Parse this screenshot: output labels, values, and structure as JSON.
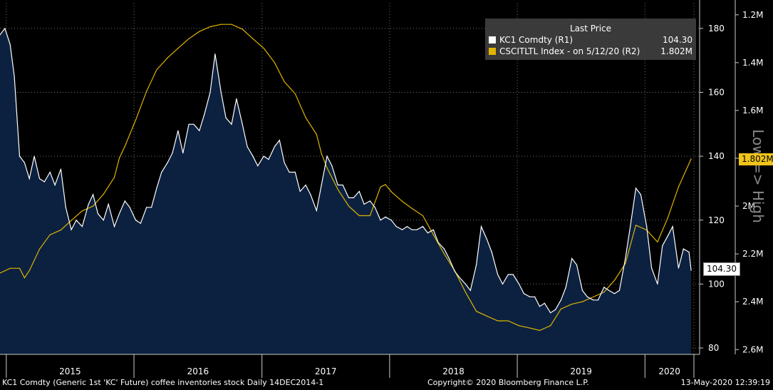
{
  "legend": {
    "header": "Last Price",
    "series1_name": "KC1 Comdty  (R1)",
    "series1_value": "104.30",
    "series2_name": "CSCITLTL Index -  on 5/12/20  (R2)",
    "series2_value": "1.802M"
  },
  "footer": {
    "left": "KC1 Comdty (Generic 1st 'KC' Future) coffee inventories stock  Daily 14DEC2014-1",
    "center": "Copyright© 2020 Bloomberg Finance L.P.",
    "right": "13-May-2020 12:39:19"
  },
  "right_axis2_title": "Low => High",
  "last_tags": {
    "price": "104.30",
    "inventory": "1.802M"
  },
  "colors": {
    "background": "#000000",
    "area_fill": "#0c2140",
    "price_line": "#ffffff",
    "inventory_line": "#e0b400",
    "grid": "#6e6e6e",
    "legend_bg": "#3a3a3a"
  },
  "chart_data": {
    "type": "line",
    "x_ticks": [
      "2015",
      "2016",
      "2017",
      "2018",
      "2019",
      "2020"
    ],
    "y1_axis": {
      "name": "R1",
      "ticks": [
        80,
        100,
        120,
        140,
        160,
        180
      ],
      "ylim": [
        78,
        188
      ]
    },
    "y2_axis": {
      "name": "R2",
      "ticks": [
        "1.2M",
        "1.4M",
        "1.6M",
        "1.8M",
        "2M",
        "2.2M",
        "2.4M",
        "2.6M"
      ],
      "ylim": [
        1.15,
        2.62
      ],
      "inverted": true
    },
    "grid": true,
    "legend_position": "top-right",
    "series": [
      {
        "name": "KC1 Comdty",
        "axis": "R1",
        "style": "area",
        "points": [
          [
            "2014-12-14",
            178
          ],
          [
            "2014-12-28",
            180
          ],
          [
            "2015-01-12",
            175
          ],
          [
            "2015-01-24",
            165
          ],
          [
            "2015-02-08",
            140
          ],
          [
            "2015-02-22",
            138
          ],
          [
            "2015-03-08",
            133
          ],
          [
            "2015-03-22",
            140
          ],
          [
            "2015-04-06",
            133
          ],
          [
            "2015-04-20",
            132
          ],
          [
            "2015-05-06",
            135
          ],
          [
            "2015-05-20",
            131
          ],
          [
            "2015-06-06",
            136
          ],
          [
            "2015-06-20",
            124
          ],
          [
            "2015-07-06",
            117
          ],
          [
            "2015-07-20",
            120
          ],
          [
            "2015-08-06",
            118
          ],
          [
            "2015-08-24",
            125
          ],
          [
            "2015-09-06",
            128
          ],
          [
            "2015-09-20",
            122
          ],
          [
            "2015-10-06",
            120
          ],
          [
            "2015-10-20",
            125
          ],
          [
            "2015-11-06",
            118
          ],
          [
            "2015-11-20",
            122
          ],
          [
            "2015-12-06",
            126
          ],
          [
            "2015-12-20",
            124
          ],
          [
            "2016-01-06",
            120
          ],
          [
            "2016-01-20",
            119
          ],
          [
            "2016-02-06",
            124
          ],
          [
            "2016-02-20",
            124
          ],
          [
            "2016-03-06",
            130
          ],
          [
            "2016-03-20",
            135
          ],
          [
            "2016-04-06",
            138
          ],
          [
            "2016-04-20",
            141
          ],
          [
            "2016-05-06",
            148
          ],
          [
            "2016-05-20",
            141
          ],
          [
            "2016-06-06",
            150
          ],
          [
            "2016-06-20",
            150
          ],
          [
            "2016-07-06",
            148
          ],
          [
            "2016-07-20",
            153
          ],
          [
            "2016-08-06",
            160
          ],
          [
            "2016-08-20",
            172
          ],
          [
            "2016-09-06",
            160
          ],
          [
            "2016-09-20",
            152
          ],
          [
            "2016-10-06",
            150
          ],
          [
            "2016-10-20",
            158
          ],
          [
            "2016-11-06",
            150
          ],
          [
            "2016-11-20",
            143
          ],
          [
            "2016-12-06",
            140
          ],
          [
            "2016-12-20",
            137
          ],
          [
            "2017-01-06",
            140
          ],
          [
            "2017-01-20",
            139
          ],
          [
            "2017-02-06",
            143
          ],
          [
            "2017-02-20",
            145
          ],
          [
            "2017-03-06",
            138
          ],
          [
            "2017-03-20",
            135
          ],
          [
            "2017-04-06",
            135
          ],
          [
            "2017-04-20",
            129
          ],
          [
            "2017-05-06",
            131
          ],
          [
            "2017-05-20",
            128
          ],
          [
            "2017-06-06",
            123
          ],
          [
            "2017-06-20",
            131
          ],
          [
            "2017-07-06",
            140
          ],
          [
            "2017-07-20",
            137
          ],
          [
            "2017-08-06",
            131
          ],
          [
            "2017-08-20",
            131
          ],
          [
            "2017-09-06",
            127
          ],
          [
            "2017-09-20",
            127
          ],
          [
            "2017-10-06",
            129
          ],
          [
            "2017-10-20",
            125
          ],
          [
            "2017-11-06",
            126
          ],
          [
            "2017-11-20",
            124
          ],
          [
            "2017-12-06",
            120
          ],
          [
            "2017-12-20",
            121
          ],
          [
            "2018-01-06",
            120
          ],
          [
            "2018-01-20",
            118
          ],
          [
            "2018-02-06",
            117
          ],
          [
            "2018-02-20",
            118
          ],
          [
            "2018-03-06",
            117
          ],
          [
            "2018-03-20",
            117
          ],
          [
            "2018-04-06",
            118
          ],
          [
            "2018-04-20",
            116
          ],
          [
            "2018-05-06",
            117
          ],
          [
            "2018-05-20",
            113
          ],
          [
            "2018-06-06",
            111
          ],
          [
            "2018-06-20",
            108
          ],
          [
            "2018-07-06",
            104
          ],
          [
            "2018-07-20",
            102
          ],
          [
            "2018-08-06",
            100
          ],
          [
            "2018-08-20",
            98
          ],
          [
            "2018-09-06",
            106
          ],
          [
            "2018-09-20",
            118
          ],
          [
            "2018-10-06",
            114
          ],
          [
            "2018-10-20",
            110
          ],
          [
            "2018-11-06",
            103
          ],
          [
            "2018-11-20",
            100
          ],
          [
            "2018-12-06",
            103
          ],
          [
            "2018-12-20",
            103
          ],
          [
            "2019-01-06",
            100
          ],
          [
            "2019-01-20",
            97
          ],
          [
            "2019-02-06",
            96
          ],
          [
            "2019-02-20",
            96
          ],
          [
            "2019-03-06",
            93
          ],
          [
            "2019-03-20",
            94
          ],
          [
            "2019-04-06",
            91
          ],
          [
            "2019-04-20",
            92
          ],
          [
            "2019-05-06",
            95
          ],
          [
            "2019-05-20",
            99
          ],
          [
            "2019-06-06",
            108
          ],
          [
            "2019-06-20",
            106
          ],
          [
            "2019-07-06",
            98
          ],
          [
            "2019-07-20",
            96
          ],
          [
            "2019-08-06",
            95
          ],
          [
            "2019-08-20",
            95
          ],
          [
            "2019-09-06",
            99
          ],
          [
            "2019-09-20",
            98
          ],
          [
            "2019-10-06",
            97
          ],
          [
            "2019-10-20",
            98
          ],
          [
            "2019-11-06",
            108
          ],
          [
            "2019-11-20",
            118
          ],
          [
            "2019-12-06",
            130
          ],
          [
            "2019-12-20",
            128
          ],
          [
            "2020-01-06",
            118
          ],
          [
            "2020-01-20",
            105
          ],
          [
            "2020-02-06",
            100
          ],
          [
            "2020-02-20",
            112
          ],
          [
            "2020-03-06",
            115
          ],
          [
            "2020-03-20",
            118
          ],
          [
            "2020-04-06",
            105
          ],
          [
            "2020-04-20",
            111
          ],
          [
            "2020-05-06",
            110
          ],
          [
            "2020-05-12",
            104.3
          ]
        ]
      },
      {
        "name": "CSCITLTL Index",
        "axis": "R2",
        "style": "line",
        "points": [
          [
            "2014-12-14",
            2.28
          ],
          [
            "2015-01-12",
            2.26
          ],
          [
            "2015-02-08",
            2.26
          ],
          [
            "2015-02-22",
            2.3
          ],
          [
            "2015-03-08",
            2.27
          ],
          [
            "2015-04-06",
            2.18
          ],
          [
            "2015-05-06",
            2.12
          ],
          [
            "2015-06-06",
            2.1
          ],
          [
            "2015-07-06",
            2.06
          ],
          [
            "2015-08-06",
            2.02
          ],
          [
            "2015-09-06",
            2.0
          ],
          [
            "2015-10-06",
            1.95
          ],
          [
            "2015-11-06",
            1.88
          ],
          [
            "2015-11-20",
            1.8
          ],
          [
            "2015-12-06",
            1.75
          ],
          [
            "2016-01-06",
            1.64
          ],
          [
            "2016-02-06",
            1.52
          ],
          [
            "2016-03-06",
            1.43
          ],
          [
            "2016-04-06",
            1.38
          ],
          [
            "2016-05-06",
            1.34
          ],
          [
            "2016-06-06",
            1.3
          ],
          [
            "2016-07-06",
            1.27
          ],
          [
            "2016-08-06",
            1.25
          ],
          [
            "2016-09-06",
            1.24
          ],
          [
            "2016-10-06",
            1.24
          ],
          [
            "2016-11-06",
            1.26
          ],
          [
            "2016-12-06",
            1.3
          ],
          [
            "2017-01-06",
            1.34
          ],
          [
            "2017-02-06",
            1.4
          ],
          [
            "2017-03-06",
            1.48
          ],
          [
            "2017-04-06",
            1.53
          ],
          [
            "2017-05-06",
            1.63
          ],
          [
            "2017-06-06",
            1.7
          ],
          [
            "2017-06-20",
            1.78
          ],
          [
            "2017-07-06",
            1.84
          ],
          [
            "2017-08-06",
            1.93
          ],
          [
            "2017-09-06",
            2.0
          ],
          [
            "2017-10-06",
            2.04
          ],
          [
            "2017-11-06",
            2.04
          ],
          [
            "2017-12-06",
            1.92
          ],
          [
            "2017-12-20",
            1.91
          ],
          [
            "2018-01-06",
            1.94
          ],
          [
            "2018-02-06",
            1.98
          ],
          [
            "2018-03-06",
            2.01
          ],
          [
            "2018-04-06",
            2.04
          ],
          [
            "2018-05-06",
            2.12
          ],
          [
            "2018-06-06",
            2.2
          ],
          [
            "2018-07-06",
            2.27
          ],
          [
            "2018-08-06",
            2.36
          ],
          [
            "2018-09-06",
            2.44
          ],
          [
            "2018-10-06",
            2.46
          ],
          [
            "2018-11-06",
            2.48
          ],
          [
            "2018-12-06",
            2.48
          ],
          [
            "2019-01-06",
            2.5
          ],
          [
            "2019-02-06",
            2.51
          ],
          [
            "2019-03-06",
            2.52
          ],
          [
            "2019-04-06",
            2.5
          ],
          [
            "2019-05-06",
            2.43
          ],
          [
            "2019-06-06",
            2.41
          ],
          [
            "2019-07-06",
            2.4
          ],
          [
            "2019-08-06",
            2.38
          ],
          [
            "2019-09-06",
            2.36
          ],
          [
            "2019-10-06",
            2.31
          ],
          [
            "2019-11-06",
            2.24
          ],
          [
            "2019-12-06",
            2.08
          ],
          [
            "2020-01-06",
            2.1
          ],
          [
            "2020-02-06",
            2.15
          ],
          [
            "2020-03-06",
            2.05
          ],
          [
            "2020-04-06",
            1.92
          ],
          [
            "2020-05-12",
            1.802
          ]
        ]
      }
    ]
  }
}
